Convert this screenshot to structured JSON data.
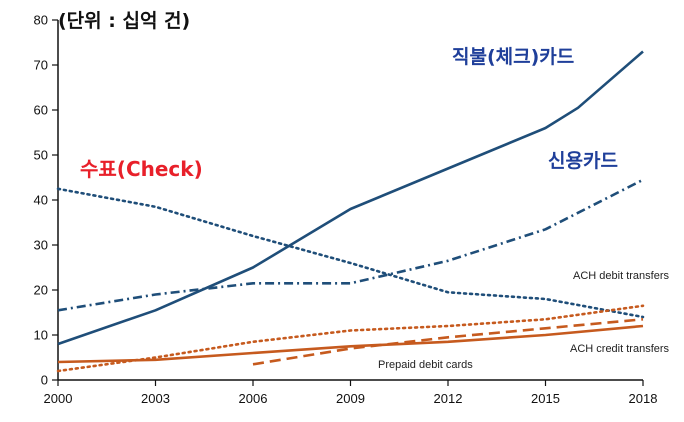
{
  "chart_data": {
    "type": "line",
    "unit_label": "(단위 : 십억 건)",
    "x_ticks": [
      "2000",
      "2003",
      "2006",
      "2009",
      "2012",
      "2015",
      "2018"
    ],
    "y_ticks": [
      "0",
      "10",
      "20",
      "30",
      "40",
      "50",
      "60",
      "70",
      "80"
    ],
    "xlim": [
      2000,
      2018
    ],
    "ylim": [
      0,
      80
    ],
    "series": [
      {
        "name": "직불(체크)카드",
        "color": "#1f4e79",
        "style": "solid",
        "points": [
          [
            2000,
            8
          ],
          [
            2003,
            15.5
          ],
          [
            2006,
            25
          ],
          [
            2009,
            38
          ],
          [
            2012,
            47
          ],
          [
            2015,
            56
          ],
          [
            2016,
            60.5
          ],
          [
            2018,
            73
          ]
        ]
      },
      {
        "name": "신용카드",
        "color": "#1f4e79",
        "style": "dashdot",
        "points": [
          [
            2000,
            15.5
          ],
          [
            2003,
            19
          ],
          [
            2006,
            21.5
          ],
          [
            2009,
            21.5
          ],
          [
            2012,
            26.5
          ],
          [
            2015,
            33.5
          ],
          [
            2018,
            44.5
          ]
        ]
      },
      {
        "name": "수표(Check)",
        "color": "#1f4e79",
        "style": "dotted",
        "points": [
          [
            2000,
            42.5
          ],
          [
            2003,
            38.5
          ],
          [
            2006,
            32
          ],
          [
            2009,
            26
          ],
          [
            2012,
            19.5
          ],
          [
            2015,
            18
          ],
          [
            2018,
            14
          ]
        ]
      },
      {
        "name": "ACH debit transfers",
        "color": "#c65a1e",
        "style": "dotted",
        "points": [
          [
            2000,
            2
          ],
          [
            2003,
            5
          ],
          [
            2006,
            8.5
          ],
          [
            2009,
            11
          ],
          [
            2012,
            12
          ],
          [
            2015,
            13.5
          ],
          [
            2018,
            16.5
          ]
        ]
      },
      {
        "name": "ACH credit transfers",
        "color": "#c65a1e",
        "style": "solid",
        "points": [
          [
            2000,
            4
          ],
          [
            2003,
            4.5
          ],
          [
            2006,
            6
          ],
          [
            2009,
            7.5
          ],
          [
            2012,
            8.5
          ],
          [
            2015,
            10
          ],
          [
            2018,
            12
          ]
        ]
      },
      {
        "name": "Prepaid debit cards",
        "color": "#c65a1e",
        "style": "dashed",
        "points": [
          [
            2006,
            3.5
          ],
          [
            2009,
            7
          ],
          [
            2012,
            9.5
          ],
          [
            2015,
            11.5
          ],
          [
            2018,
            13.5
          ]
        ]
      }
    ]
  }
}
